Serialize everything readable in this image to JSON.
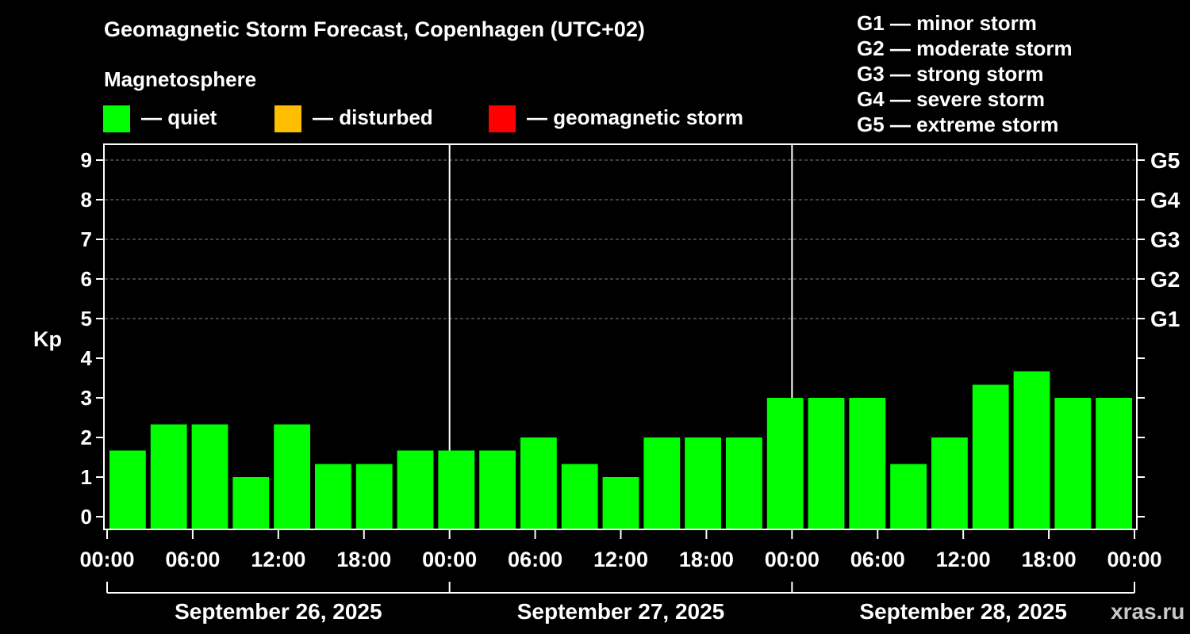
{
  "chart_data": {
    "type": "bar",
    "title": "Geomagnetic Storm Forecast, Copenhagen (UTC+02)",
    "legend": {
      "title": "Magnetosphere",
      "items": [
        {
          "label": "— quiet",
          "color": "#00ff00"
        },
        {
          "label": "— disturbed",
          "color": "#ffbf00"
        },
        {
          "label": "— geomagnetic storm",
          "color": "#ff0000"
        }
      ]
    },
    "g_scale_legend": [
      "G1 — minor storm",
      "G2 — moderate storm",
      "G3 — strong storm",
      "G4 — severe storm",
      "G5 — extreme storm"
    ],
    "ylabel": "Kp",
    "ylim": [
      0,
      9
    ],
    "yticks": [
      "0",
      "1",
      "2",
      "3",
      "4",
      "5",
      "6",
      "7",
      "8",
      "9"
    ],
    "right_ticks": [
      {
        "kp": 5,
        "label": "G1"
      },
      {
        "kp": 6,
        "label": "G2"
      },
      {
        "kp": 7,
        "label": "G3"
      },
      {
        "kp": 8,
        "label": "G4"
      },
      {
        "kp": 9,
        "label": "G5"
      }
    ],
    "xticks": [
      "00:00",
      "06:00",
      "12:00",
      "18:00",
      "00:00",
      "06:00",
      "12:00",
      "18:00",
      "00:00",
      "06:00",
      "12:00",
      "18:00",
      "00:00"
    ],
    "days": [
      "September 26, 2025",
      "September 27, 2025",
      "September 28, 2025"
    ],
    "interval_hours": 3,
    "values": [
      1.67,
      2.33,
      2.33,
      1.0,
      2.33,
      1.33,
      1.33,
      1.67,
      1.67,
      1.67,
      2.0,
      1.33,
      1.0,
      2.0,
      2.0,
      2.0,
      3.0,
      3.0,
      3.0,
      1.33,
      2.0,
      3.33,
      3.67,
      3.0,
      3.0
    ],
    "bar_color": "#00ff00",
    "grid": true
  },
  "watermark": "xras.ru"
}
